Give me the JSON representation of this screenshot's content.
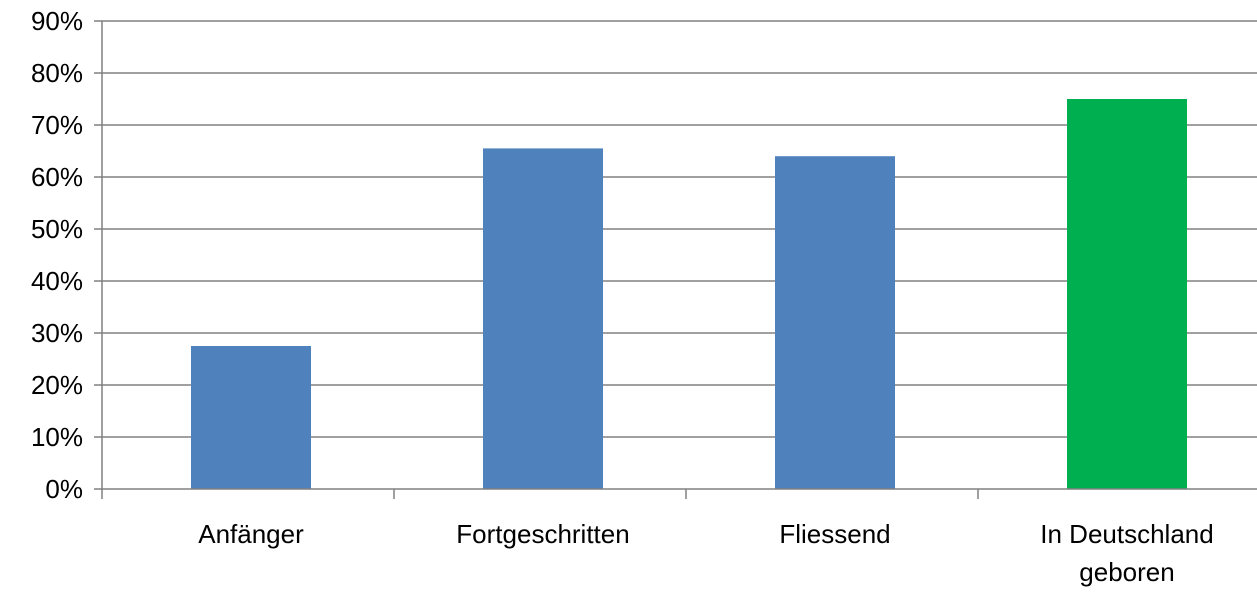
{
  "chart_data": {
    "type": "bar",
    "categories": [
      [
        "Anfänger"
      ],
      [
        "Fortgeschritten"
      ],
      [
        "Fliessend"
      ],
      [
        "In Deutschland",
        "geboren"
      ]
    ],
    "values": [
      0.275,
      0.655,
      0.64,
      0.75
    ],
    "bar_colors": [
      "#4f81bd",
      "#4f81bd",
      "#4f81bd",
      "#00b050"
    ],
    "ylim": [
      0,
      0.9
    ],
    "yticks": [
      "0%",
      "10%",
      "20%",
      "30%",
      "40%",
      "50%",
      "60%",
      "70%",
      "80%",
      "90%"
    ],
    "grid": true,
    "legend": "none",
    "title": "",
    "xlabel": "",
    "ylabel": ""
  }
}
